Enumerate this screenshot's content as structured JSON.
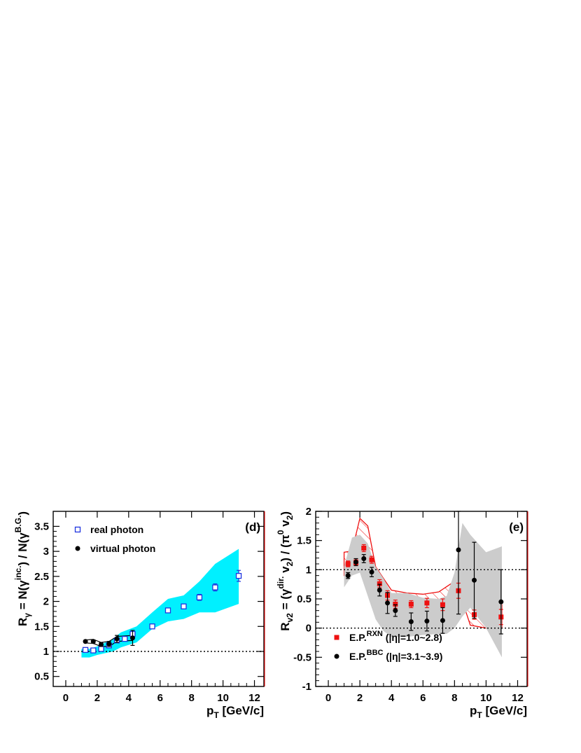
{
  "chart_data": [
    {
      "type": "scatter",
      "panel_label": "(d)",
      "xlabel": "p_T [GeV/c]",
      "ylabel": "R_γ = N(γ^inc.) / N(γ^B.G.)",
      "xlim": [
        -0.8,
        12.6
      ],
      "ylim": [
        0.3,
        3.8
      ],
      "xticks": [
        0,
        2,
        4,
        6,
        8,
        10,
        12
      ],
      "yticks": [
        0.5,
        1,
        1.5,
        2,
        2.5,
        3,
        3.5
      ],
      "reference_line": 1,
      "legend": {
        "position": "top-left",
        "entries": [
          "real photon",
          "virtual photon"
        ]
      },
      "series": [
        {
          "name": "real photon",
          "marker": "open-square",
          "color": "#1f35e0",
          "x": [
            1.25,
            1.75,
            2.25,
            2.75,
            3.25,
            3.75,
            4.25,
            5.5,
            6.5,
            7.5,
            8.5,
            9.5,
            11.0
          ],
          "y": [
            1.03,
            1.02,
            1.05,
            1.12,
            1.22,
            1.25,
            1.35,
            1.5,
            1.82,
            1.9,
            2.08,
            2.28,
            2.51
          ],
          "err": [
            0.0,
            0.0,
            0.0,
            0.0,
            0.0,
            0.0,
            0.0,
            0.0,
            0.0,
            0.04,
            0.06,
            0.07,
            0.11
          ]
        },
        {
          "name": "virtual photon",
          "marker": "filled-circle",
          "color": "#000000",
          "x": [
            1.25,
            1.75,
            2.25,
            2.75,
            3.25,
            4.25
          ],
          "y": [
            1.2,
            1.2,
            1.14,
            1.15,
            1.25,
            1.27
          ],
          "err": [
            0.02,
            0.03,
            0.04,
            0.05,
            0.07,
            0.15
          ]
        }
      ],
      "bands": [
        {
          "name": "real photon systematic band",
          "color": "#00f0ff",
          "x": [
            1.0,
            1.5,
            2.0,
            3.0,
            3.5,
            4.5,
            5.5,
            6.5,
            7.5,
            8.5,
            9.5,
            11.0
          ],
          "lower": [
            0.88,
            0.88,
            0.93,
            1.0,
            1.08,
            1.18,
            1.45,
            1.6,
            1.65,
            1.78,
            1.78,
            1.95
          ],
          "upper": [
            1.05,
            1.05,
            1.1,
            1.25,
            1.38,
            1.5,
            1.78,
            2.05,
            2.12,
            2.4,
            2.75,
            3.05
          ]
        },
        {
          "name": "virtual photon systematic band",
          "color": "#000000",
          "x": [
            1.25,
            1.75,
            2.25,
            2.75,
            3.25,
            4.25
          ],
          "lower": [
            1.17,
            1.16,
            1.1,
            1.1,
            1.2,
            1.22
          ],
          "upper": [
            1.23,
            1.24,
            1.18,
            1.2,
            1.3,
            1.32
          ]
        }
      ]
    },
    {
      "type": "scatter",
      "panel_label": "(e)",
      "xlabel": "p_T [GeV/c]",
      "ylabel": "R_v2 = (γ^dir. v_2) / (π^0 v_2)",
      "xlim": [
        -0.8,
        12.6
      ],
      "ylim": [
        -1,
        2
      ],
      "xticks": [
        0,
        2,
        4,
        6,
        8,
        10,
        12
      ],
      "yticks": [
        -1,
        -0.5,
        0,
        0.5,
        1,
        1.5,
        2
      ],
      "reference_lines": [
        0,
        1
      ],
      "legend": {
        "position": "bottom-left",
        "entries": [
          "E.P.^RXN (|η|=1.0~2.8)",
          "E.P.^BBC (|η|=3.1~3.9)"
        ]
      },
      "series": [
        {
          "name": "E.P.^RXN (|η|=1.0~2.8)",
          "marker": "filled-square",
          "color": "#ee1111",
          "x": [
            1.25,
            1.75,
            2.25,
            2.75,
            3.25,
            3.75,
            4.25,
            5.25,
            6.25,
            7.25,
            8.25,
            9.25,
            10.95
          ],
          "y": [
            1.1,
            1.12,
            1.37,
            1.17,
            0.76,
            0.56,
            0.41,
            0.41,
            0.43,
            0.4,
            0.64,
            0.23,
            0.19
          ],
          "err": [
            0.05,
            0.05,
            0.06,
            0.06,
            0.07,
            0.08,
            0.07,
            0.06,
            0.08,
            0.1,
            0.13,
            0.08,
            0.13
          ]
        },
        {
          "name": "E.P.^BBC (|η|=3.1~3.9)",
          "marker": "filled-circle",
          "color": "#000000",
          "x": [
            1.25,
            1.75,
            2.25,
            2.75,
            3.25,
            3.75,
            4.25,
            5.25,
            6.25,
            7.25,
            8.25,
            9.25,
            10.95
          ],
          "y": [
            0.9,
            1.13,
            1.19,
            0.96,
            0.65,
            0.43,
            0.3,
            0.11,
            0.12,
            0.13,
            1.34,
            0.82,
            0.45
          ],
          "err": [
            0.05,
            0.06,
            0.07,
            0.08,
            0.1,
            0.18,
            0.1,
            0.15,
            0.17,
            0.22,
            1.1,
            0.65,
            0.55
          ]
        }
      ],
      "bands": [
        {
          "name": "E.P.^RXN systematic band",
          "color": "#ee1111",
          "style": "hatched",
          "x": [
            1.0,
            1.5,
            2.0,
            2.5,
            3.0,
            3.5,
            4.0,
            5.0,
            6.0,
            7.0,
            8.0,
            8.5,
            9.0,
            10.0,
            11.0
          ],
          "lower": [
            0.9,
            0.92,
            1.07,
            1.0,
            0.5,
            0.3,
            0.18,
            0.12,
            0.15,
            0.2,
            0.4,
            0.46,
            0.05,
            0.0,
            0.0
          ],
          "upper": [
            1.3,
            1.32,
            1.88,
            1.75,
            1.05,
            0.85,
            0.65,
            0.6,
            0.58,
            0.62,
            0.8,
            0.86,
            0.42,
            0.38,
            0.4
          ]
        },
        {
          "name": "E.P.^BBC systematic band",
          "color": "#cccccc",
          "x": [
            1.0,
            1.5,
            2.0,
            2.5,
            3.0,
            3.5,
            4.0,
            5.0,
            6.0,
            7.0,
            7.5,
            8.0,
            8.5,
            9.0,
            10.0,
            11.0
          ],
          "lower": [
            0.7,
            0.9,
            0.95,
            0.55,
            0.15,
            -0.05,
            -0.15,
            -0.15,
            -0.12,
            -0.1,
            -0.1,
            0.0,
            0.2,
            0.35,
            0.0,
            -0.5
          ],
          "upper": [
            1.05,
            1.55,
            1.6,
            1.45,
            1.05,
            0.85,
            0.6,
            0.6,
            0.52,
            0.5,
            0.55,
            0.95,
            1.8,
            1.6,
            1.3,
            1.4
          ]
        }
      ]
    }
  ]
}
